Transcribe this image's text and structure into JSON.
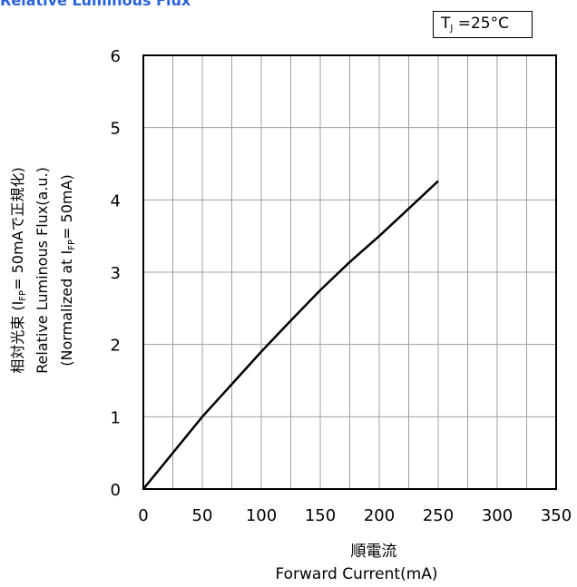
{
  "page": {
    "title": "Relative Luminous Flux",
    "condition": {
      "prefix": "T",
      "subscript": "J",
      "value": " =25°C"
    }
  },
  "chart_data": {
    "type": "line",
    "title": "Relative Luminous Flux",
    "xlabel_jp": "順電流",
    "xlabel": "Forward Current(mA)",
    "ylabel_jp": {
      "pre": "相対光束 (I",
      "sub": "FP",
      "post": "= 50mAで正規化)"
    },
    "ylabel": "Relative Luminous Flux(a.u.)",
    "ylabel_norm": {
      "pre": "(Normalized  at I",
      "sub": "FP",
      "post": "= 50mA)"
    },
    "xlim": [
      0,
      350
    ],
    "ylim": [
      0,
      6
    ],
    "x_ticks": [
      0,
      50,
      100,
      150,
      200,
      250,
      300,
      350
    ],
    "y_ticks": [
      0,
      1,
      2,
      3,
      4,
      5,
      6
    ],
    "x_grid_step": 25,
    "y_grid_step": 1,
    "grid": true,
    "legend": "none",
    "line_color": "#000000",
    "series": [
      {
        "x": [
          0,
          10,
          25,
          50,
          75,
          100,
          125,
          150,
          175,
          200,
          225,
          250
        ],
        "values": [
          0,
          0.2,
          0.5,
          1.0,
          1.45,
          1.9,
          2.33,
          2.75,
          3.14,
          3.5,
          3.88,
          4.26
        ]
      }
    ]
  }
}
